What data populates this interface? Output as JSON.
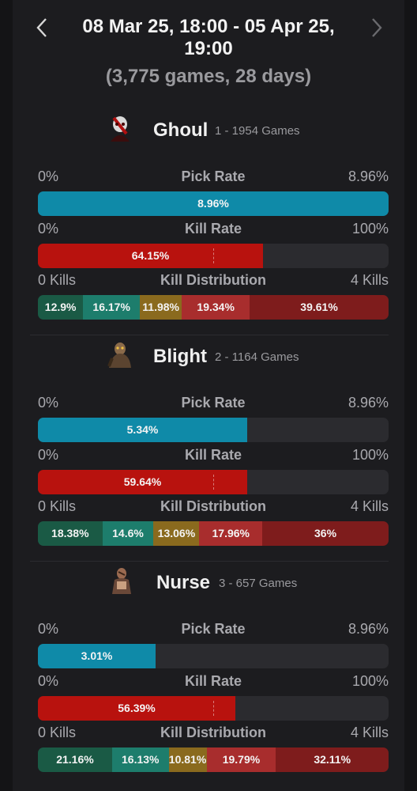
{
  "header": {
    "date_range": "08 Mar 25, 18:00 - 05 Apr 25, 19:00",
    "summary": "(3,775 games, 28 days)",
    "prev_icon": "chevron-left-icon",
    "next_icon": "chevron-right-icon"
  },
  "colors": {
    "pick": "#0f8aa8",
    "kill": "#b8120e",
    "track": "#2b2b2f",
    "dist": [
      "#1a5a45",
      "#1d7d6c",
      "#8a6a1e",
      "#a82d2d",
      "#7e1c1c"
    ]
  },
  "labels": {
    "pick_rate": "Pick Rate",
    "kill_rate": "Kill Rate",
    "kill_distribution": "Kill Distribution",
    "pick_min": "0%",
    "pick_max": "8.96%",
    "kill_min": "0%",
    "kill_max": "100%",
    "dist_min": "0 Kills",
    "dist_max": "4 Kills"
  },
  "pick_scale_max": 8.96,
  "killers": [
    {
      "name": "Ghoul",
      "meta": "1 - 1954 Games",
      "portrait_icon": "ghoul-portrait-icon",
      "pick_rate": 8.96,
      "pick_label": "8.96%",
      "kill_rate": 64.15,
      "kill_label": "64.15%",
      "distribution": [
        12.9,
        16.17,
        11.98,
        19.34,
        39.61
      ],
      "distribution_labels": [
        "12.9%",
        "16.17%",
        "11.98%",
        "19.34%",
        "39.61%"
      ]
    },
    {
      "name": "Blight",
      "meta": "2 - 1164 Games",
      "portrait_icon": "blight-portrait-icon",
      "pick_rate": 5.34,
      "pick_label": "5.34%",
      "kill_rate": 59.64,
      "kill_label": "59.64%",
      "distribution": [
        18.38,
        14.6,
        13.06,
        17.96,
        36
      ],
      "distribution_labels": [
        "18.38%",
        "14.6%",
        "13.06%",
        "17.96%",
        "36%"
      ]
    },
    {
      "name": "Nurse",
      "meta": "3 - 657 Games",
      "portrait_icon": "nurse-portrait-icon",
      "pick_rate": 3.01,
      "pick_label": "3.01%",
      "kill_rate": 56.39,
      "kill_label": "56.39%",
      "distribution": [
        21.16,
        16.13,
        10.81,
        19.79,
        32.11
      ],
      "distribution_labels": [
        "21.16%",
        "16.13%",
        "10.81%",
        "19.79%",
        "32.11%"
      ]
    }
  ]
}
